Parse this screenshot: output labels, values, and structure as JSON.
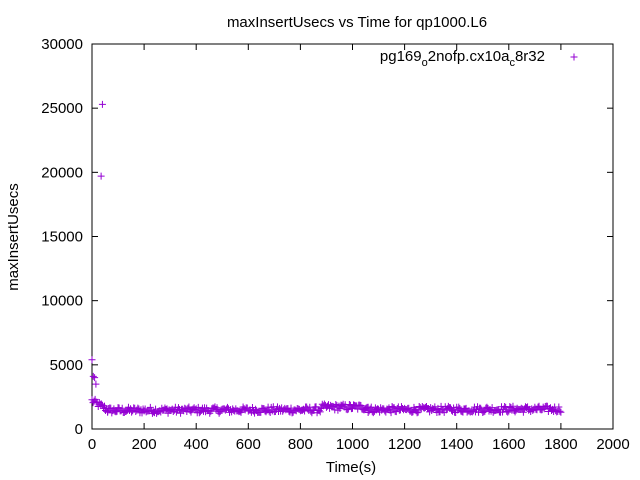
{
  "chart_data": {
    "type": "scatter",
    "title": "maxInsertUsecs vs Time for qp1000.L6",
    "xlabel": "Time(s)",
    "ylabel": "maxInsertUsecs",
    "xlim": [
      0,
      2000
    ],
    "ylim": [
      0,
      30000
    ],
    "xticks": [
      0,
      200,
      400,
      600,
      800,
      1000,
      1200,
      1400,
      1600,
      1800,
      2000
    ],
    "yticks": [
      0,
      5000,
      10000,
      15000,
      20000,
      25000,
      30000
    ],
    "grid": false,
    "legend_position": "top-right",
    "marker": "plus",
    "series": [
      {
        "name": "pg169_o2nofp.cx10a_c8r32",
        "name_parts": {
          "base1": "pg169",
          "sub1": "o",
          "base2": "2nofp.cx10a",
          "sub2": "c",
          "base3": "8r32"
        },
        "color": "#9400d3",
        "outliers": [
          {
            "x": 0,
            "y": 5400
          },
          {
            "x": 5,
            "y": 4100
          },
          {
            "x": 10,
            "y": 4000
          },
          {
            "x": 15,
            "y": 3500
          },
          {
            "x": 35,
            "y": 19700
          },
          {
            "x": 40,
            "y": 25300
          }
        ],
        "bulk_segments": [
          {
            "x_start": 0,
            "x_end": 60,
            "y_from": 2200,
            "y_to": 1500
          },
          {
            "x_start": 60,
            "x_end": 880,
            "y_from": 1450,
            "y_to": 1500
          },
          {
            "x_start": 880,
            "x_end": 1060,
            "y_from": 1700,
            "y_to": 1700
          },
          {
            "x_start": 1060,
            "x_end": 1800,
            "y_from": 1500,
            "y_to": 1550
          }
        ],
        "bulk_spread": 250
      }
    ]
  }
}
